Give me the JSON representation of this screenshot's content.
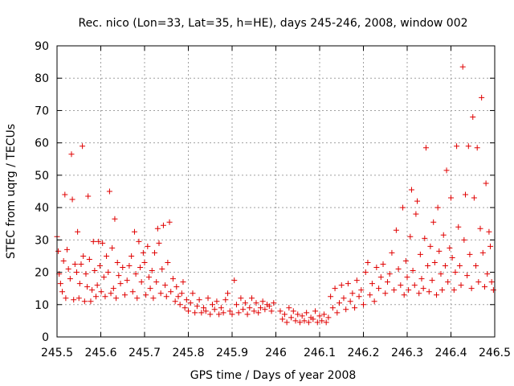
{
  "chart_data": {
    "type": "scatter",
    "title": "Rec. nico (Lon=33, Lat=35, h=HE), days 245-246, 2008, window 002",
    "xlabel": "GPS time / Days of year 2008",
    "ylabel": "STEC from uqrg / TECUs",
    "xlim": [
      245.5,
      246.5
    ],
    "ylim": [
      0,
      90
    ],
    "x_ticks": [
      "245.5",
      "245.6",
      "245.7",
      "245.8",
      "245.9",
      "246",
      "246.1",
      "246.2",
      "246.3",
      "246.4",
      "246.5"
    ],
    "y_ticks": [
      "0",
      "10",
      "20",
      "30",
      "40",
      "50",
      "60",
      "70",
      "80",
      "90"
    ],
    "grid": true,
    "marker": "+",
    "color": "#e00000",
    "points": [
      [
        245.5,
        31.0
      ],
      [
        245.503,
        26.5
      ],
      [
        245.505,
        19.5
      ],
      [
        245.508,
        16.5
      ],
      [
        245.512,
        14.0
      ],
      [
        245.515,
        23.5
      ],
      [
        245.518,
        44.0
      ],
      [
        245.52,
        12.0
      ],
      [
        245.523,
        27.0
      ],
      [
        245.526,
        21.0
      ],
      [
        245.53,
        18.0
      ],
      [
        245.533,
        56.5
      ],
      [
        245.535,
        42.5
      ],
      [
        245.538,
        11.5
      ],
      [
        245.541,
        22.5
      ],
      [
        245.545,
        20.0
      ],
      [
        245.547,
        32.5
      ],
      [
        245.55,
        12.0
      ],
      [
        245.552,
        16.5
      ],
      [
        245.555,
        22.5
      ],
      [
        245.558,
        59.0
      ],
      [
        245.56,
        25.0
      ],
      [
        245.563,
        11.0
      ],
      [
        245.566,
        19.5
      ],
      [
        245.569,
        15.5
      ],
      [
        245.571,
        43.5
      ],
      [
        245.574,
        24.0
      ],
      [
        245.577,
        11.0
      ],
      [
        245.58,
        14.5
      ],
      [
        245.583,
        29.5
      ],
      [
        245.586,
        20.5
      ],
      [
        245.589,
        12.5
      ],
      [
        245.592,
        16.0
      ],
      [
        245.595,
        29.5
      ],
      [
        245.598,
        22.0
      ],
      [
        245.601,
        14.0
      ],
      [
        245.604,
        29.0
      ],
      [
        245.607,
        18.5
      ],
      [
        245.61,
        12.5
      ],
      [
        245.613,
        25.0
      ],
      [
        245.617,
        20.0
      ],
      [
        245.62,
        45.0
      ],
      [
        245.623,
        13.5
      ],
      [
        245.626,
        27.5
      ],
      [
        245.629,
        15.0
      ],
      [
        245.632,
        36.5
      ],
      [
        245.635,
        12.0
      ],
      [
        245.638,
        23.0
      ],
      [
        245.641,
        19.0
      ],
      [
        245.645,
        16.5
      ],
      [
        245.65,
        21.5
      ],
      [
        245.655,
        13.0
      ],
      [
        245.66,
        17.5
      ],
      [
        245.665,
        22.0
      ],
      [
        245.67,
        25.0
      ],
      [
        245.673,
        14.0
      ],
      [
        245.677,
        32.5
      ],
      [
        245.68,
        19.5
      ],
      [
        245.683,
        12.0
      ],
      [
        245.687,
        29.5
      ],
      [
        245.69,
        21.5
      ],
      [
        245.693,
        17.0
      ],
      [
        245.697,
        26.0
      ],
      [
        245.7,
        23.0
      ],
      [
        245.703,
        13.0
      ],
      [
        245.707,
        28.0
      ],
      [
        245.71,
        18.5
      ],
      [
        245.713,
        15.0
      ],
      [
        245.717,
        20.5
      ],
      [
        245.72,
        12.0
      ],
      [
        245.723,
        26.0
      ],
      [
        245.727,
        17.0
      ],
      [
        245.73,
        33.5
      ],
      [
        245.733,
        29.0
      ],
      [
        245.737,
        13.5
      ],
      [
        245.74,
        21.0
      ],
      [
        245.743,
        34.5
      ],
      [
        245.747,
        16.0
      ],
      [
        245.75,
        12.5
      ],
      [
        245.753,
        23.0
      ],
      [
        245.757,
        35.5
      ],
      [
        245.76,
        14.0
      ],
      [
        245.765,
        18.0
      ],
      [
        245.77,
        11.0
      ],
      [
        245.773,
        15.5
      ],
      [
        245.777,
        12.5
      ],
      [
        245.781,
        10.0
      ],
      [
        245.785,
        13.5
      ],
      [
        245.788,
        17.0
      ],
      [
        245.792,
        9.0
      ],
      [
        245.796,
        11.5
      ],
      [
        245.8,
        8.0
      ],
      [
        245.805,
        10.5
      ],
      [
        245.81,
        13.5
      ],
      [
        245.815,
        7.5
      ],
      [
        245.82,
        9.5
      ],
      [
        245.825,
        11.5
      ],
      [
        245.83,
        7.5
      ],
      [
        245.835,
        9.0
      ],
      [
        245.84,
        8.0
      ],
      [
        245.845,
        12.0
      ],
      [
        245.85,
        7.0
      ],
      [
        245.855,
        10.0
      ],
      [
        245.86,
        8.5
      ],
      [
        245.865,
        11.0
      ],
      [
        245.87,
        7.0
      ],
      [
        245.875,
        9.0
      ],
      [
        245.88,
        7.5
      ],
      [
        245.885,
        11.5
      ],
      [
        245.89,
        13.5
      ],
      [
        245.895,
        8.0
      ],
      [
        245.9,
        7.0
      ],
      [
        245.905,
        17.5
      ],
      [
        245.91,
        10.0
      ],
      [
        245.915,
        7.5
      ],
      [
        245.92,
        12.0
      ],
      [
        245.925,
        8.5
      ],
      [
        245.93,
        10.5
      ],
      [
        245.935,
        7.0
      ],
      [
        245.94,
        9.0
      ],
      [
        245.945,
        12.0
      ],
      [
        245.95,
        8.0
      ],
      [
        245.955,
        10.5
      ],
      [
        245.96,
        7.5
      ],
      [
        245.965,
        9.0
      ],
      [
        245.97,
        11.0
      ],
      [
        245.975,
        8.5
      ],
      [
        245.98,
        10.0
      ],
      [
        245.985,
        9.5
      ],
      [
        245.99,
        8.0
      ],
      [
        245.995,
        10.5
      ],
      [
        246.01,
        8.0
      ],
      [
        246.015,
        5.5
      ],
      [
        246.02,
        7.0
      ],
      [
        246.025,
        4.5
      ],
      [
        246.03,
        9.0
      ],
      [
        246.035,
        6.0
      ],
      [
        246.04,
        8.0
      ],
      [
        246.045,
        5.0
      ],
      [
        246.05,
        7.0
      ],
      [
        246.055,
        4.5
      ],
      [
        246.06,
        6.5
      ],
      [
        246.065,
        5.0
      ],
      [
        246.07,
        7.5
      ],
      [
        246.075,
        4.5
      ],
      [
        246.08,
        6.0
      ],
      [
        246.085,
        5.5
      ],
      [
        246.09,
        8.0
      ],
      [
        246.095,
        4.5
      ],
      [
        246.1,
        6.5
      ],
      [
        246.105,
        5.0
      ],
      [
        246.11,
        7.0
      ],
      [
        246.115,
        4.5
      ],
      [
        246.12,
        6.0
      ],
      [
        246.125,
        12.5
      ],
      [
        246.13,
        9.0
      ],
      [
        246.135,
        15.0
      ],
      [
        246.14,
        7.5
      ],
      [
        246.145,
        10.5
      ],
      [
        246.15,
        16.0
      ],
      [
        246.155,
        12.0
      ],
      [
        246.16,
        8.5
      ],
      [
        246.165,
        16.5
      ],
      [
        246.17,
        11.0
      ],
      [
        246.175,
        13.5
      ],
      [
        246.18,
        9.0
      ],
      [
        246.185,
        17.5
      ],
      [
        246.19,
        12.5
      ],
      [
        246.195,
        14.5
      ],
      [
        246.2,
        10.0
      ],
      [
        246.205,
        20.0
      ],
      [
        246.21,
        23.0
      ],
      [
        246.215,
        13.0
      ],
      [
        246.22,
        16.5
      ],
      [
        246.225,
        11.0
      ],
      [
        246.23,
        21.5
      ],
      [
        246.235,
        15.0
      ],
      [
        246.24,
        18.5
      ],
      [
        246.245,
        22.5
      ],
      [
        246.25,
        13.5
      ],
      [
        246.255,
        17.0
      ],
      [
        246.26,
        19.5
      ],
      [
        246.265,
        26.0
      ],
      [
        246.27,
        14.5
      ],
      [
        246.275,
        33.0
      ],
      [
        246.28,
        21.0
      ],
      [
        246.285,
        16.0
      ],
      [
        246.29,
        40.0
      ],
      [
        246.293,
        13.0
      ],
      [
        246.297,
        23.5
      ],
      [
        246.3,
        18.5
      ],
      [
        246.303,
        14.5
      ],
      [
        246.307,
        31.0
      ],
      [
        246.31,
        45.5
      ],
      [
        246.313,
        20.5
      ],
      [
        246.317,
        16.0
      ],
      [
        246.32,
        38.0
      ],
      [
        246.323,
        42.0
      ],
      [
        246.327,
        13.5
      ],
      [
        246.33,
        25.5
      ],
      [
        246.333,
        18.0
      ],
      [
        246.337,
        15.0
      ],
      [
        246.34,
        30.5
      ],
      [
        246.343,
        58.5
      ],
      [
        246.347,
        22.0
      ],
      [
        246.35,
        14.0
      ],
      [
        246.353,
        28.0
      ],
      [
        246.357,
        17.5
      ],
      [
        246.36,
        35.5
      ],
      [
        246.363,
        23.0
      ],
      [
        246.367,
        13.0
      ],
      [
        246.37,
        40.0
      ],
      [
        246.373,
        26.5
      ],
      [
        246.377,
        19.5
      ],
      [
        246.38,
        14.5
      ],
      [
        246.383,
        31.5
      ],
      [
        246.387,
        22.0
      ],
      [
        246.39,
        51.5
      ],
      [
        246.393,
        17.0
      ],
      [
        246.397,
        27.5
      ],
      [
        246.4,
        43.0
      ],
      [
        246.403,
        24.5
      ],
      [
        246.407,
        14.5
      ],
      [
        246.41,
        20.0
      ],
      [
        246.413,
        59.0
      ],
      [
        246.417,
        34.0
      ],
      [
        246.42,
        22.0
      ],
      [
        246.423,
        16.0
      ],
      [
        246.427,
        83.5
      ],
      [
        246.43,
        30.0
      ],
      [
        246.433,
        44.0
      ],
      [
        246.437,
        19.0
      ],
      [
        246.44,
        59.0
      ],
      [
        246.443,
        25.5
      ],
      [
        246.447,
        15.0
      ],
      [
        246.45,
        68.0
      ],
      [
        246.453,
        43.0
      ],
      [
        246.457,
        22.0
      ],
      [
        246.46,
        58.5
      ],
      [
        246.463,
        17.0
      ],
      [
        246.467,
        33.5
      ],
      [
        246.47,
        74.0
      ],
      [
        246.473,
        26.0
      ],
      [
        246.477,
        15.5
      ],
      [
        246.48,
        47.5
      ],
      [
        246.483,
        19.5
      ],
      [
        246.487,
        32.5
      ],
      [
        246.49,
        28.0
      ],
      [
        246.493,
        17.0
      ],
      [
        246.497,
        14.5
      ]
    ]
  }
}
